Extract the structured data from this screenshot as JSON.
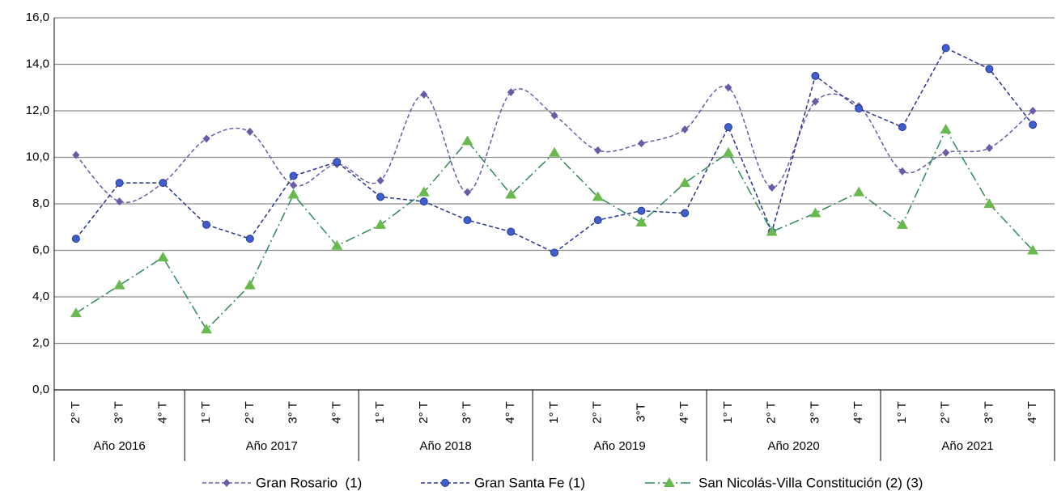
{
  "chart_data": {
    "type": "line",
    "category_groups": [
      {
        "label": "Año 2016",
        "categories": [
          "2° T",
          "3° T",
          "4° T"
        ]
      },
      {
        "label": "Año 2017",
        "categories": [
          "1° T",
          "2° T",
          "3° T",
          "4° T"
        ]
      },
      {
        "label": "Año 2018",
        "categories": [
          "1° T",
          "2° T",
          "3° T",
          "4° T"
        ]
      },
      {
        "label": "Año 2019",
        "categories": [
          "1° T",
          "2° T",
          "3°T",
          "4° T"
        ]
      },
      {
        "label": "Año 2020",
        "categories": [
          "1° T",
          "2° T",
          "3° T",
          "4° T"
        ]
      },
      {
        "label": "Año 2021",
        "categories": [
          "1° T",
          "2° T",
          "3° T",
          "4° T"
        ]
      }
    ],
    "series": [
      {
        "name": "Gran Rosario  (1)",
        "color": "#6b5ba6",
        "marker": "diamond",
        "smooth": true,
        "values": [
          10.1,
          8.1,
          8.9,
          10.8,
          11.1,
          8.8,
          9.7,
          9.0,
          12.7,
          8.5,
          12.8,
          11.8,
          10.3,
          10.6,
          11.2,
          13.0,
          8.7,
          12.4,
          12.2,
          9.4,
          10.2,
          10.4,
          12.0
        ]
      },
      {
        "name": "Gran Santa Fe (1)",
        "color": "#26358f",
        "marker": "circle",
        "smooth": false,
        "values": [
          6.5,
          8.9,
          8.9,
          7.1,
          6.5,
          9.2,
          9.8,
          8.3,
          8.1,
          7.3,
          6.8,
          5.9,
          7.3,
          7.7,
          7.6,
          11.3,
          6.8,
          13.5,
          12.1,
          11.3,
          14.7,
          13.8,
          11.4
        ]
      },
      {
        "name": "San Nicolás-Villa Constitución (2) (3)",
        "color": "#2e8b57",
        "marker": "triangle",
        "smooth": false,
        "values": [
          3.3,
          4.5,
          5.7,
          2.6,
          4.5,
          8.4,
          6.2,
          7.1,
          8.5,
          10.7,
          8.4,
          10.2,
          8.3,
          7.2,
          8.9,
          10.2,
          6.8,
          7.6,
          8.5,
          7.1,
          11.2,
          8.0,
          6.0
        ]
      }
    ],
    "ylim": [
      0,
      16
    ],
    "yticks": [
      {
        "value": 0,
        "label": "0,0"
      },
      {
        "value": 2,
        "label": "2,0"
      },
      {
        "value": 4,
        "label": "4,0"
      },
      {
        "value": 6,
        "label": "6,0"
      },
      {
        "value": 8,
        "label": "8,0"
      },
      {
        "value": 10,
        "label": "10,0"
      },
      {
        "value": 12,
        "label": "12,0"
      },
      {
        "value": 14,
        "label": "14,0"
      },
      {
        "value": 16,
        "label": "16,0"
      }
    ],
    "grid": true,
    "legend": "bottom"
  }
}
